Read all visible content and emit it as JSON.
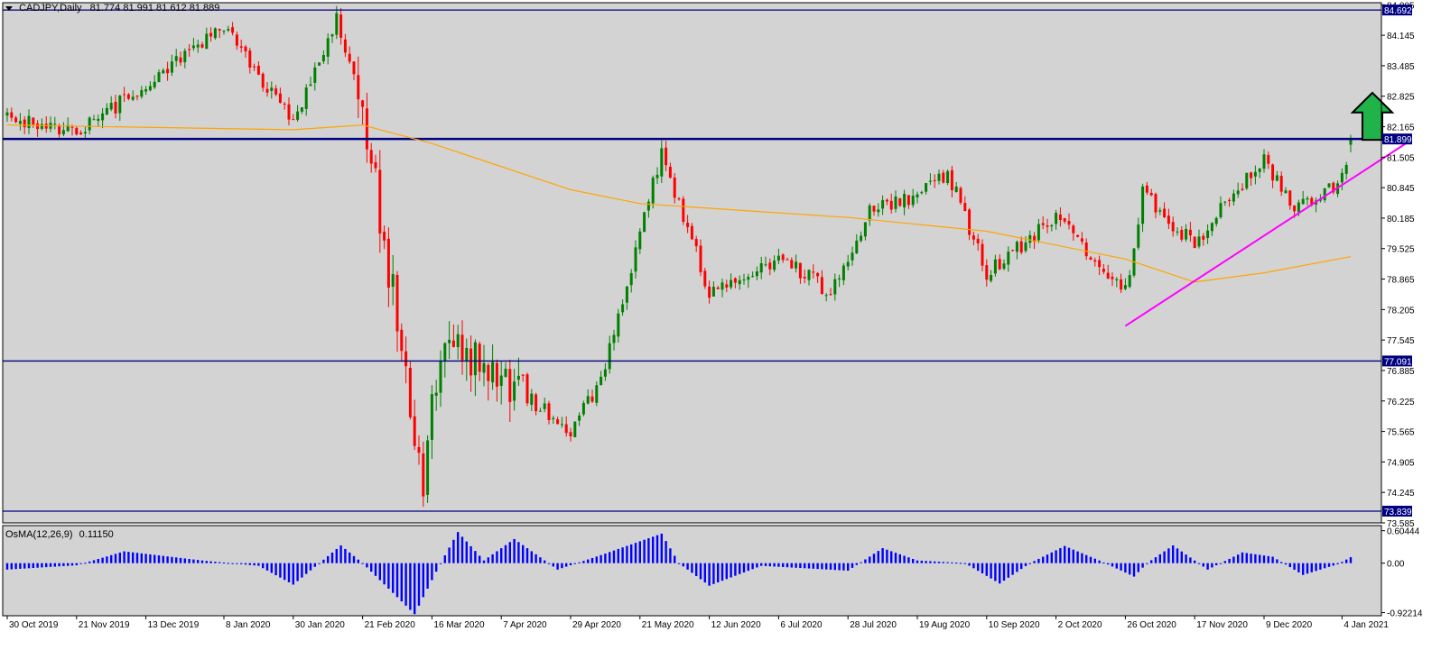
{
  "header": {
    "symbol": "CADJPY,Daily",
    "ohlc": "81.774 81.991 81.612 81.889"
  },
  "osma_header": {
    "name": "OsMA(12,26,9)",
    "value": "0.11150"
  },
  "colors": {
    "background": "#d3d3d3",
    "bull": "#008000",
    "bear": "#ff0000",
    "levels": "#000080",
    "moving_average": "#ffa500",
    "trendline": "#ff00ff",
    "arrow": "#1fb34a",
    "osma": "#0000ff"
  },
  "icons": [
    "dropdown-triangle-icon",
    "up-arrow-icon"
  ],
  "chart_data": [
    {
      "type": "candlestick",
      "title": "CADJPY,Daily",
      "ylim": [
        73.585,
        84.85
      ],
      "y_ticks": [
        "84.805",
        "84.145",
        "83.485",
        "82.825",
        "82.165",
        "81.505",
        "80.845",
        "80.185",
        "79.525",
        "78.865",
        "78.205",
        "77.545",
        "76.885",
        "76.225",
        "75.565",
        "74.905",
        "74.245",
        "73.585"
      ],
      "x_ticks": [
        "30 Oct 2019",
        "21 Nov 2019",
        "13 Dec 2019",
        "8 Jan 2020",
        "30 Jan 2020",
        "21 Feb 2020",
        "16 Mar 2020",
        "7 Apr 2020",
        "29 Apr 2020",
        "21 May 2020",
        "12 Jun 2020",
        "6 Jul 2020",
        "28 Jul 2020",
        "19 Aug 2020",
        "10 Sep 2020",
        "2 Oct 2020",
        "26 Oct 2020",
        "17 Nov 2020",
        "9 Dec 2020",
        "4 Jan 2021"
      ],
      "anchors": [
        {
          "date": "30 Oct 2019",
          "price": 82.4
        },
        {
          "date": "21 Nov 2019",
          "price": 82.0
        },
        {
          "date": "13 Dec 2019",
          "price": 83.1
        },
        {
          "date": "8 Jan 2020",
          "price": 84.3
        },
        {
          "date": "30 Jan 2020",
          "price": 82.3
        },
        {
          "date": "13 Feb 2020",
          "price": 84.5
        },
        {
          "date": "21 Feb 2020",
          "price": 82.6
        },
        {
          "date": "12 Mar 2020",
          "price": 74.5
        },
        {
          "date": "16 Mar 2020",
          "price": 76.5
        },
        {
          "date": "20 Mar 2020",
          "price": 77.4
        },
        {
          "date": "7 Apr 2020",
          "price": 76.7
        },
        {
          "date": "29 Apr 2020",
          "price": 75.6
        },
        {
          "date": "10 May 2020",
          "price": 76.6
        },
        {
          "date": "28 May 2020",
          "price": 81.6
        },
        {
          "date": "12 Jun 2020",
          "price": 78.6
        },
        {
          "date": "6 Jul 2020",
          "price": 79.3
        },
        {
          "date": "22 Jul 2020",
          "price": 78.6
        },
        {
          "date": "28 Jul 2020",
          "price": 79.3
        },
        {
          "date": "4 Aug 2020",
          "price": 80.4
        },
        {
          "date": "19 Aug 2020",
          "price": 80.6
        },
        {
          "date": "28 Aug 2020",
          "price": 81.2
        },
        {
          "date": "10 Sep 2020",
          "price": 79.0
        },
        {
          "date": "2 Oct 2020",
          "price": 80.2
        },
        {
          "date": "26 Oct 2020",
          "price": 78.6
        },
        {
          "date": "1 Nov 2020",
          "price": 80.7
        },
        {
          "date": "17 Nov 2020",
          "price": 79.6
        },
        {
          "date": "26 Nov 2020",
          "price": 80.5
        },
        {
          "date": "9 Dec 2020",
          "price": 81.5
        },
        {
          "date": "18 Dec 2020",
          "price": 80.3
        },
        {
          "date": "4 Jan 2021",
          "price": 81.0
        },
        {
          "date": "6 Jan 2021",
          "price": 81.889
        }
      ],
      "last": {
        "open": 81.774,
        "high": 81.991,
        "low": 81.612,
        "close": 81.889
      },
      "horizontal_levels": [
        {
          "price": 84.692,
          "label": "84.692"
        },
        {
          "price": 81.899,
          "label": "81.899",
          "thick": true
        },
        {
          "price": 77.091,
          "label": "77.091"
        },
        {
          "price": 73.839,
          "label": "73.839"
        }
      ],
      "moving_average": [
        {
          "date": "30 Oct 2019",
          "price": 82.2
        },
        {
          "date": "30 Jan 2020",
          "price": 82.1
        },
        {
          "date": "21 Feb 2020",
          "price": 82.2
        },
        {
          "date": "16 Mar 2020",
          "price": 81.8
        },
        {
          "date": "29 Apr 2020",
          "price": 80.8
        },
        {
          "date": "21 May 2020",
          "price": 80.5
        },
        {
          "date": "6 Jul 2020",
          "price": 80.3
        },
        {
          "date": "28 Jul 2020",
          "price": 80.2
        },
        {
          "date": "10 Sep 2020",
          "price": 79.9
        },
        {
          "date": "26 Oct 2020",
          "price": 79.3
        },
        {
          "date": "17 Nov 2020",
          "price": 78.8
        },
        {
          "date": "9 Dec 2020",
          "price": 79.0
        },
        {
          "date": "6 Jan 2021",
          "price": 79.35
        }
      ],
      "trendline": [
        {
          "date": "26 Oct 2020",
          "price": 77.85
        },
        {
          "date": "26 Jan 2021",
          "price": 81.88
        }
      ],
      "annotation": {
        "type": "up-arrow",
        "date": "13 Jan 2021",
        "base_price": 81.88,
        "top_price": 82.9
      }
    },
    {
      "type": "bar",
      "title": "OsMA(12,26,9) 0.11150",
      "ylim": [
        -0.98,
        0.7
      ],
      "y_ticks": [
        "0.60444",
        "0.00",
        "-0.92214"
      ],
      "anchors": [
        {
          "date": "30 Oct 2019",
          "value": -0.12
        },
        {
          "date": "21 Nov 2019",
          "value": -0.04
        },
        {
          "date": "8 Dec 2019",
          "value": 0.22
        },
        {
          "date": "1 Jan 2020",
          "value": 0.05
        },
        {
          "date": "20 Jan 2020",
          "value": -0.05
        },
        {
          "date": "30 Jan 2020",
          "value": -0.4
        },
        {
          "date": "14 Feb 2020",
          "value": 0.33
        },
        {
          "date": "21 Feb 2020",
          "value": 0.0
        },
        {
          "date": "10 Mar 2020",
          "value": -0.95
        },
        {
          "date": "18 Mar 2020",
          "value": 0.0
        },
        {
          "date": "24 Mar 2020",
          "value": 0.58
        },
        {
          "date": "1 Apr 2020",
          "value": 0.05
        },
        {
          "date": "12 Apr 2020",
          "value": 0.45
        },
        {
          "date": "24 Apr 2020",
          "value": -0.12
        },
        {
          "date": "10 May 2020",
          "value": 0.15
        },
        {
          "date": "28 May 2020",
          "value": 0.55
        },
        {
          "date": "3 Jun 2020",
          "value": 0.0
        },
        {
          "date": "14 Jun 2020",
          "value": -0.42
        },
        {
          "date": "30 Jun 2020",
          "value": -0.05
        },
        {
          "date": "28 Jul 2020",
          "value": -0.14
        },
        {
          "date": "7 Aug 2020",
          "value": 0.28
        },
        {
          "date": "19 Aug 2020",
          "value": 0.05
        },
        {
          "date": "3 Sep 2020",
          "value": 0.0
        },
        {
          "date": "15 Sep 2020",
          "value": -0.38
        },
        {
          "date": "24 Sep 2020",
          "value": 0.0
        },
        {
          "date": "6 Oct 2020",
          "value": 0.32
        },
        {
          "date": "16 Oct 2020",
          "value": 0.05
        },
        {
          "date": "28 Oct 2020",
          "value": -0.25
        },
        {
          "date": "2 Nov 2020",
          "value": 0.0
        },
        {
          "date": "10 Nov 2020",
          "value": 0.33
        },
        {
          "date": "20 Nov 2020",
          "value": -0.12
        },
        {
          "date": "2 Dec 2020",
          "value": 0.2
        },
        {
          "date": "12 Dec 2020",
          "value": 0.12
        },
        {
          "date": "22 Dec 2020",
          "value": -0.22
        },
        {
          "date": "2 Jan 2021",
          "value": -0.02
        },
        {
          "date": "6 Jan 2021",
          "value": 0.1115
        }
      ]
    }
  ]
}
